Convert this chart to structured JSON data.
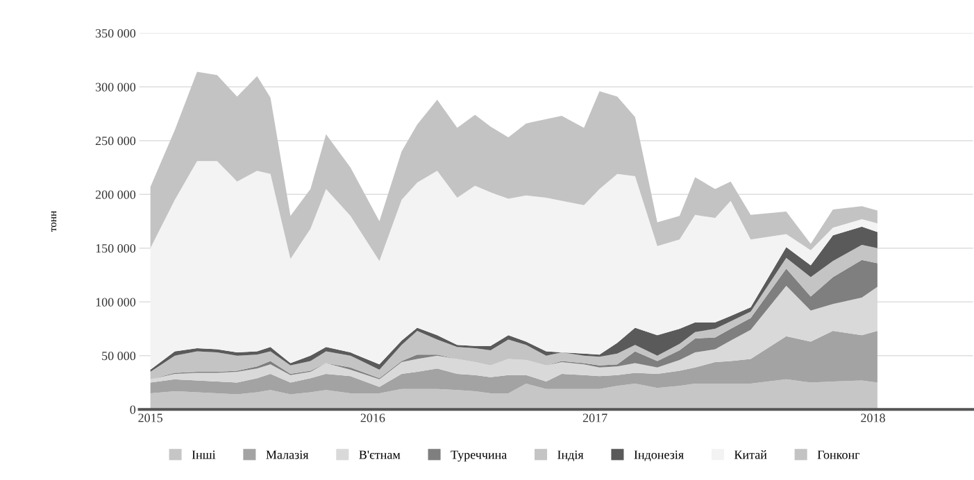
{
  "chart_data": {
    "type": "area",
    "stacked": true,
    "ylabel": "тонн",
    "grid": "y",
    "legend": "bottom",
    "x": [
      2015.0,
      2015.11,
      2015.21,
      2015.3,
      2015.39,
      2015.48,
      2015.54,
      2015.63,
      2015.72,
      2015.79,
      2015.9,
      2016.03,
      2016.13,
      2016.2,
      2016.29,
      2016.38,
      2016.46,
      2016.53,
      2016.61,
      2016.69,
      2016.78,
      2016.85,
      2016.95,
      2017.02,
      2017.1,
      2017.18,
      2017.28,
      2017.38,
      2017.45,
      2017.54,
      2017.61,
      2017.7,
      2017.86,
      2017.97,
      2018.07,
      2018.2,
      2018.27
    ],
    "xlim": [
      2014.95,
      2018.7
    ],
    "xticks": [
      {
        "value": 2015,
        "label": "2015"
      },
      {
        "value": 2016,
        "label": "2016"
      },
      {
        "value": 2017,
        "label": "2017"
      },
      {
        "value": 2018.25,
        "label": "2018"
      }
    ],
    "ylim": [
      0,
      350000
    ],
    "yticks": [
      {
        "value": 0,
        "label": "0"
      },
      {
        "value": 50000,
        "label": "50 000"
      },
      {
        "value": 100000,
        "label": "100 000"
      },
      {
        "value": 150000,
        "label": "150 000"
      },
      {
        "value": 200000,
        "label": "200 000"
      },
      {
        "value": 250000,
        "label": "250 000"
      },
      {
        "value": 300000,
        "label": "300 000"
      },
      {
        "value": 350000,
        "label": "350 000"
      }
    ],
    "series": [
      {
        "name": "Інші",
        "color": "#c6c6c6",
        "values": [
          15000,
          17000,
          16000,
          15000,
          14000,
          16000,
          18000,
          14000,
          16000,
          18000,
          15000,
          15000,
          19000,
          19000,
          19000,
          18000,
          17000,
          15000,
          15000,
          24000,
          19000,
          19000,
          19000,
          19000,
          22000,
          24000,
          20000,
          22000,
          24000,
          24000,
          24000,
          24000,
          28000,
          25000,
          26000,
          27000,
          25000
        ]
      },
      {
        "name": "Малазія",
        "color": "#a3a3a3",
        "values": [
          10000,
          11000,
          11000,
          11000,
          11000,
          13000,
          15000,
          11000,
          13000,
          15000,
          16000,
          6000,
          14000,
          16000,
          19000,
          15000,
          15000,
          15000,
          17000,
          8000,
          7000,
          14000,
          13000,
          12000,
          10000,
          10000,
          13000,
          14000,
          15000,
          20000,
          21000,
          23000,
          40000,
          38000,
          47000,
          42000,
          48000
        ]
      },
      {
        "name": "В'єтнам",
        "color": "#d9d9d9",
        "values": [
          3000,
          5000,
          7000,
          8000,
          10000,
          9000,
          9000,
          7000,
          6000,
          10000,
          6000,
          7000,
          11000,
          12000,
          12000,
          14000,
          12000,
          11000,
          15000,
          14000,
          15000,
          11000,
          10000,
          8000,
          8000,
          9000,
          6000,
          10000,
          14000,
          12000,
          19000,
          27000,
          47000,
          29000,
          25000,
          35000,
          41000
        ]
      },
      {
        "name": "Туреччина",
        "color": "#7f7f7f",
        "values": [
          0,
          1000,
          1000,
          1000,
          1000,
          2000,
          3000,
          1000,
          1000,
          0,
          2000,
          1000,
          1000,
          4000,
          1000,
          0,
          0,
          0,
          0,
          0,
          0,
          1000,
          1000,
          2000,
          2000,
          11000,
          6000,
          9000,
          13000,
          11000,
          11000,
          11000,
          16000,
          13000,
          25000,
          35000,
          22000
        ]
      },
      {
        "name": "Індія",
        "color": "#c4c4c4",
        "values": [
          7000,
          16000,
          19000,
          18000,
          14000,
          11000,
          9000,
          8000,
          9000,
          11000,
          11000,
          8000,
          15000,
          22000,
          14000,
          11000,
          13000,
          14000,
          18000,
          14000,
          9000,
          8000,
          7000,
          8000,
          10000,
          6000,
          5000,
          6000,
          6000,
          8000,
          7000,
          6000,
          10000,
          18000,
          15000,
          14000,
          14000
        ]
      },
      {
        "name": "Індонезія",
        "color": "#5a5a5a",
        "values": [
          2000,
          4000,
          3000,
          3000,
          3000,
          3000,
          4000,
          2000,
          5000,
          4000,
          3000,
          5000,
          4000,
          3000,
          4000,
          2000,
          2000,
          4000,
          4000,
          3000,
          4000,
          0,
          2000,
          2000,
          10000,
          16000,
          19000,
          14000,
          9000,
          6000,
          5000,
          4000,
          10000,
          11000,
          24000,
          17000,
          15000
        ]
      },
      {
        "name": "Китай",
        "color": "#f3f3f3",
        "values": [
          113000,
          141000,
          174000,
          175000,
          159000,
          168000,
          161000,
          97000,
          118000,
          147000,
          127000,
          96000,
          131000,
          135000,
          153000,
          137000,
          149000,
          143000,
          127000,
          136000,
          143000,
          141000,
          138000,
          154000,
          157000,
          141000,
          83000,
          83000,
          100000,
          97000,
          107000,
          63000,
          12000,
          14000,
          7000,
          7000,
          8000
        ]
      },
      {
        "name": "Гонконг",
        "color": "#c3c3c3",
        "values": [
          57000,
          65000,
          83000,
          80000,
          79000,
          88000,
          71000,
          40000,
          37000,
          51000,
          45000,
          37000,
          45000,
          54000,
          66000,
          65000,
          66000,
          61000,
          57000,
          67000,
          73000,
          79000,
          72000,
          91000,
          72000,
          55000,
          22000,
          22000,
          35000,
          27000,
          18000,
          23000,
          21000,
          6000,
          17000,
          12000,
          12000
        ]
      }
    ]
  }
}
